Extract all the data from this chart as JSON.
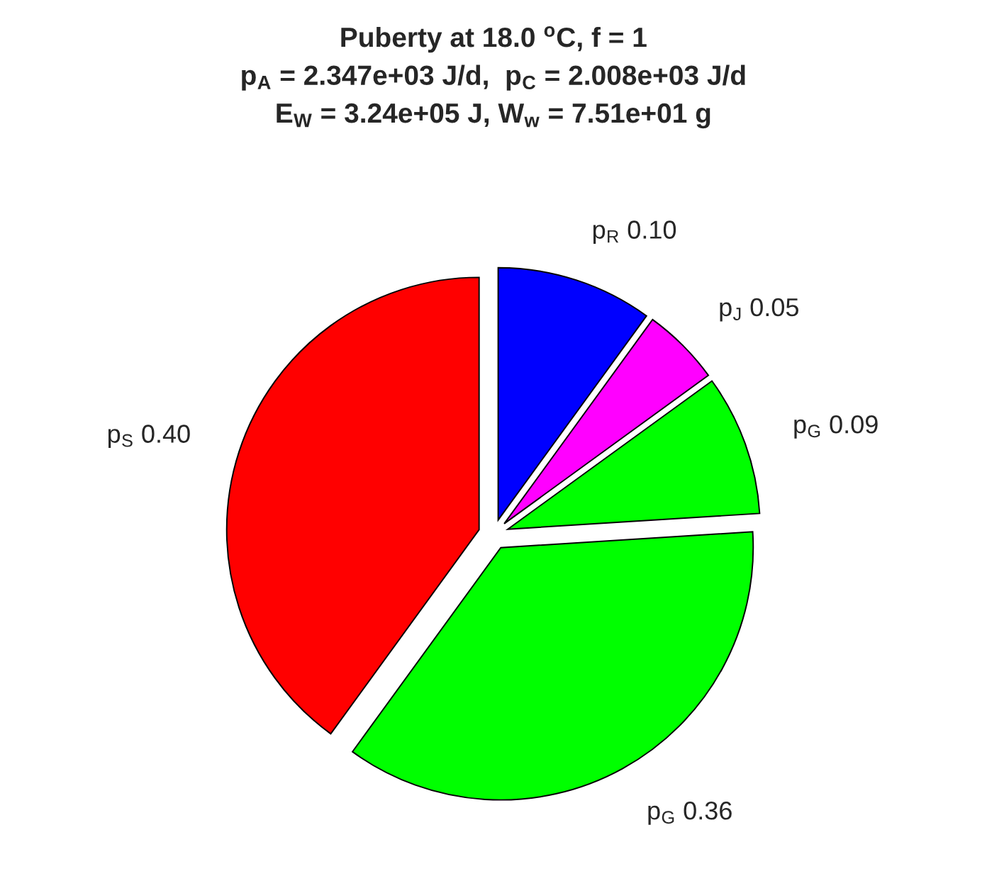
{
  "chart_data": {
    "type": "pie",
    "title": "Puberty at 18.0 $^{o}$C, f = 1\np$_{A}$ = 2.347e+03 J/d,  p$_{C}$ = 2.008e+03 J/d\nE$_{W}$ = 3.24e+05 J, W$_{w}$ = 7.51e+01 g",
    "categories": [
      "p$_{R}$",
      "p$_{J}$",
      "p$_{G}$",
      "p$_{G}$",
      "p$_{S}$"
    ],
    "values": [
      0.1,
      0.05,
      0.09,
      0.36,
      0.4
    ],
    "value_labels": [
      "0.10",
      "0.05",
      "0.09",
      "0.36",
      "0.40"
    ],
    "colors": [
      "#0000ff",
      "#ff00ff",
      "#00ff00",
      "#00ff00",
      "#ff0000"
    ]
  }
}
